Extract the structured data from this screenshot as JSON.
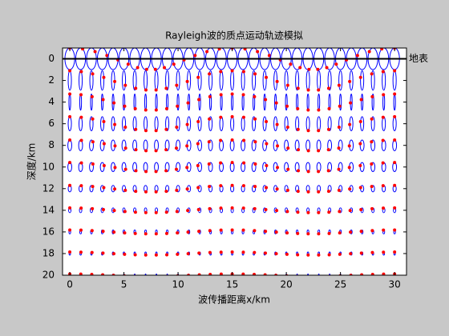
{
  "chart_data": {
    "type": "orbit",
    "title": "Rayleigh波的质点运动轨迹模拟",
    "xlabel": "波传播距离x/km",
    "ylabel": "深度/km",
    "annotation": "地表",
    "x": [
      0,
      1,
      2,
      3,
      4,
      5,
      6,
      7,
      8,
      9,
      10,
      11,
      12,
      13,
      14,
      15,
      16,
      17,
      18,
      19,
      20,
      21,
      22,
      23,
      24,
      25,
      26,
      27,
      28,
      29,
      30
    ],
    "depths": [
      0,
      2,
      4,
      6,
      8,
      10,
      12,
      14,
      16,
      18,
      20
    ],
    "orbit_horizontal_radius": [
      0.45,
      0.15,
      0.08,
      0.15,
      0.18,
      0.18,
      0.15,
      0.11,
      0.08,
      0.07,
      0.04
    ],
    "orbit_vertical_radius": [
      1.0,
      0.9,
      0.75,
      0.65,
      0.5,
      0.42,
      0.3,
      0.22,
      0.18,
      0.14,
      0.11
    ],
    "orbit_color": "#0000ff",
    "particle_color": "#ff0000",
    "surface_color": "#000000",
    "xlim": [
      -0.67,
      31.1
    ],
    "ylim": [
      -1,
      20
    ],
    "xticks": [
      0,
      5,
      10,
      15,
      20,
      25,
      30
    ],
    "yticks": [
      0,
      2,
      4,
      6,
      8,
      10,
      12,
      14,
      16,
      18,
      20
    ],
    "y_reversed": true
  }
}
